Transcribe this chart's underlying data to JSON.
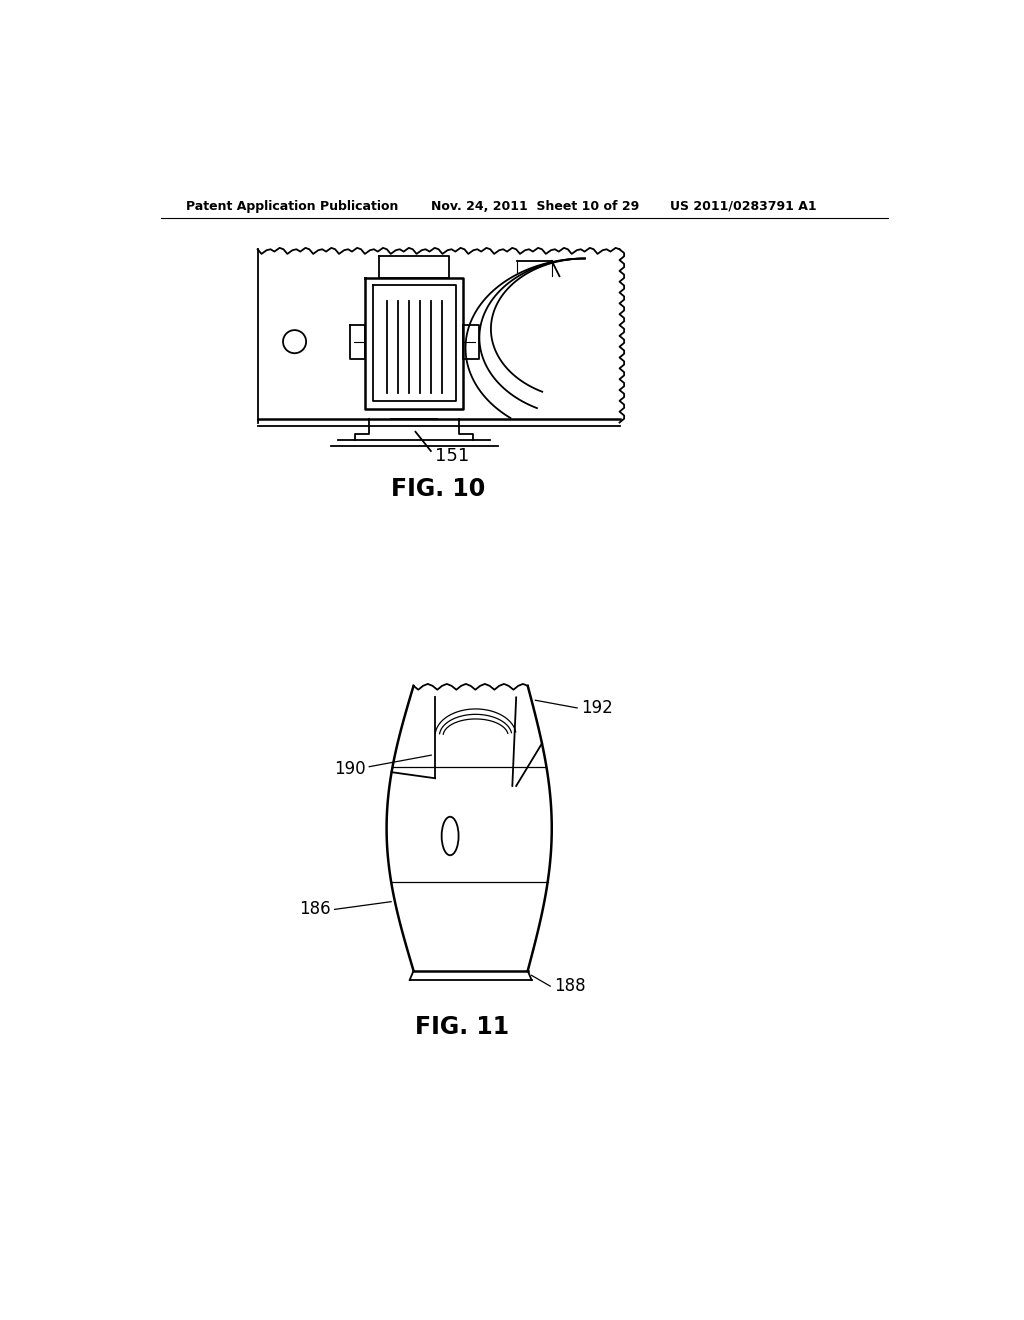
{
  "background_color": "#ffffff",
  "header_left": "Patent Application Publication",
  "header_middle": "Nov. 24, 2011  Sheet 10 of 29",
  "header_right": "US 2011/0283791 A1",
  "fig10_label": "FIG. 10",
  "fig11_label": "FIG. 11",
  "label_151": "151",
  "label_186": "186",
  "label_188": "188",
  "label_190": "190",
  "label_192": "192",
  "line_color": "#000000",
  "text_color": "#000000",
  "header_fontsize": 9,
  "fig_label_fontsize": 17,
  "callout_fontsize": 12
}
